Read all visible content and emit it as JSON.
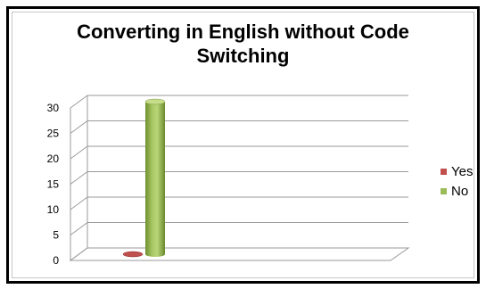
{
  "chart_data": {
    "type": "bar",
    "title_lines": [
      "Converting in English without Code",
      "Switching"
    ],
    "categories": [
      ""
    ],
    "series": [
      {
        "name": "Yes",
        "values": [
          0
        ],
        "color": "#c0504d"
      },
      {
        "name": "No",
        "values": [
          30
        ],
        "color": "#9bbb59"
      }
    ],
    "ylim": [
      0,
      30
    ],
    "yticks": [
      "0",
      "5",
      "10",
      "15",
      "20",
      "25",
      "30"
    ],
    "grid": true,
    "legend_position": "right",
    "style": "3d-cylinder"
  }
}
